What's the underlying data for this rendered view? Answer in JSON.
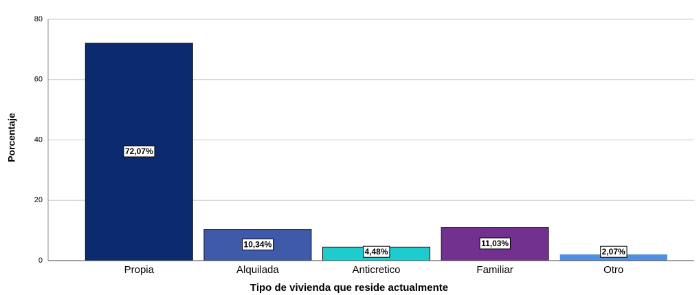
{
  "chart_data": {
    "type": "bar",
    "x_label": "Tipo de vivienda que reside actualmente",
    "y_label": "Porcentaje",
    "categories": [
      "Propia",
      "Alquilada",
      "Anticretico",
      "Familiar",
      "Otro"
    ],
    "values": [
      72.07,
      10.34,
      4.48,
      11.03,
      2.07
    ],
    "value_labels": [
      "72,07%",
      "10,34%",
      "4,48%",
      "11,03%",
      "2,07%"
    ],
    "colors": [
      "#0b2a6f",
      "#3f5aa8",
      "#1ecbcf",
      "#73318f",
      "#4d8fe0"
    ],
    "ylim": [
      0,
      80
    ],
    "yticks": [
      0,
      20,
      40,
      60,
      80
    ],
    "grid": true
  }
}
